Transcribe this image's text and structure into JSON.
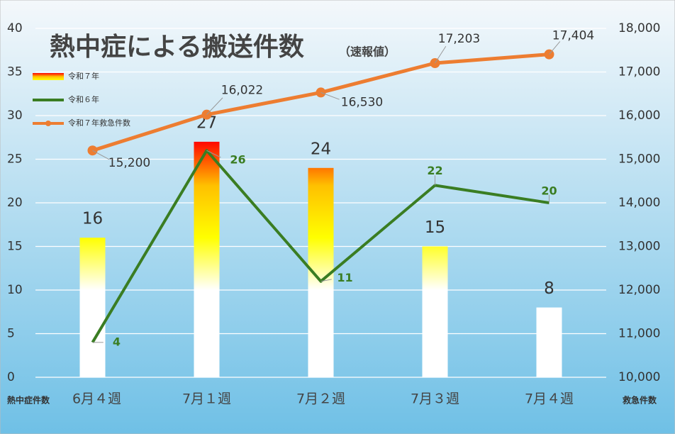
{
  "chart_data": {
    "type": "combo",
    "title": "熱中症による搬送件数",
    "subtitle": "（速報値）",
    "y_label": "熱中症件数",
    "y2_label": "救急件数",
    "categories": [
      "6月４週",
      "7月１週",
      "7月２週",
      "7月３週",
      "7月４週"
    ],
    "series": [
      {
        "name": "令和７年",
        "type": "bar",
        "colors": [
          "#ffffff",
          "#ffff00",
          "#ffc000",
          "#ff0000"
        ],
        "values": [
          16,
          27,
          24,
          15,
          8
        ]
      },
      {
        "name": "令和６年",
        "type": "line",
        "color": "#3a7d22",
        "values": [
          4,
          26,
          11,
          22,
          20
        ]
      },
      {
        "name": "令和７年救急件数",
        "type": "line",
        "color": "#ed7d31",
        "axis": "y2",
        "markers": true,
        "values": [
          15200,
          16022,
          16530,
          17203,
          17404
        ],
        "value_labels": [
          "15,200",
          "16,022",
          "16,530",
          "17,203",
          "17,404"
        ]
      }
    ],
    "ylim": [
      0,
      40
    ],
    "yticks": [
      0,
      5,
      10,
      15,
      20,
      25,
      30,
      35,
      40
    ],
    "y2lim": [
      10000,
      18000
    ],
    "y2ticks": [
      {
        "value": 10000,
        "label": "10,000"
      },
      {
        "value": 11000,
        "label": "11,000"
      },
      {
        "value": 12000,
        "label": "12,000"
      },
      {
        "value": 13000,
        "label": "13,000"
      },
      {
        "value": 14000,
        "label": "14,000"
      },
      {
        "value": 15000,
        "label": "15,000"
      },
      {
        "value": 16000,
        "label": "16,000"
      },
      {
        "value": 17000,
        "label": "17,000"
      },
      {
        "value": 18000,
        "label": "18,000"
      }
    ],
    "grid": true,
    "legend": "top-left"
  }
}
